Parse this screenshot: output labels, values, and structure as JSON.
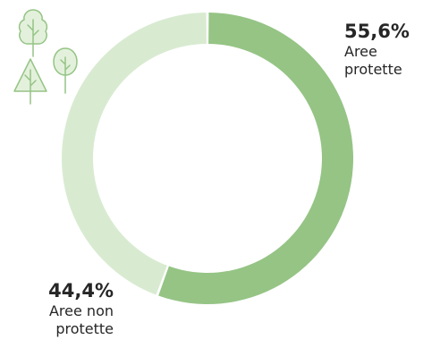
{
  "chart_data": {
    "type": "pie",
    "donut": true,
    "title": "",
    "slices": [
      {
        "label": "Aree protette",
        "value": 55.6,
        "display": "55,6%",
        "color": "#95c485"
      },
      {
        "label": "Aree non protette",
        "value": 44.4,
        "display": "44,4%",
        "color": "#d8ebd1"
      }
    ],
    "legend": "none"
  },
  "labels": {
    "protected": {
      "pct": "55,6%",
      "line1": "Aree",
      "line2": "protette"
    },
    "unprotected": {
      "pct": "44,4%",
      "line1": "Aree non",
      "line2": "protette"
    }
  },
  "decor": {
    "icon": "trees-icon",
    "color": "#95c485"
  }
}
